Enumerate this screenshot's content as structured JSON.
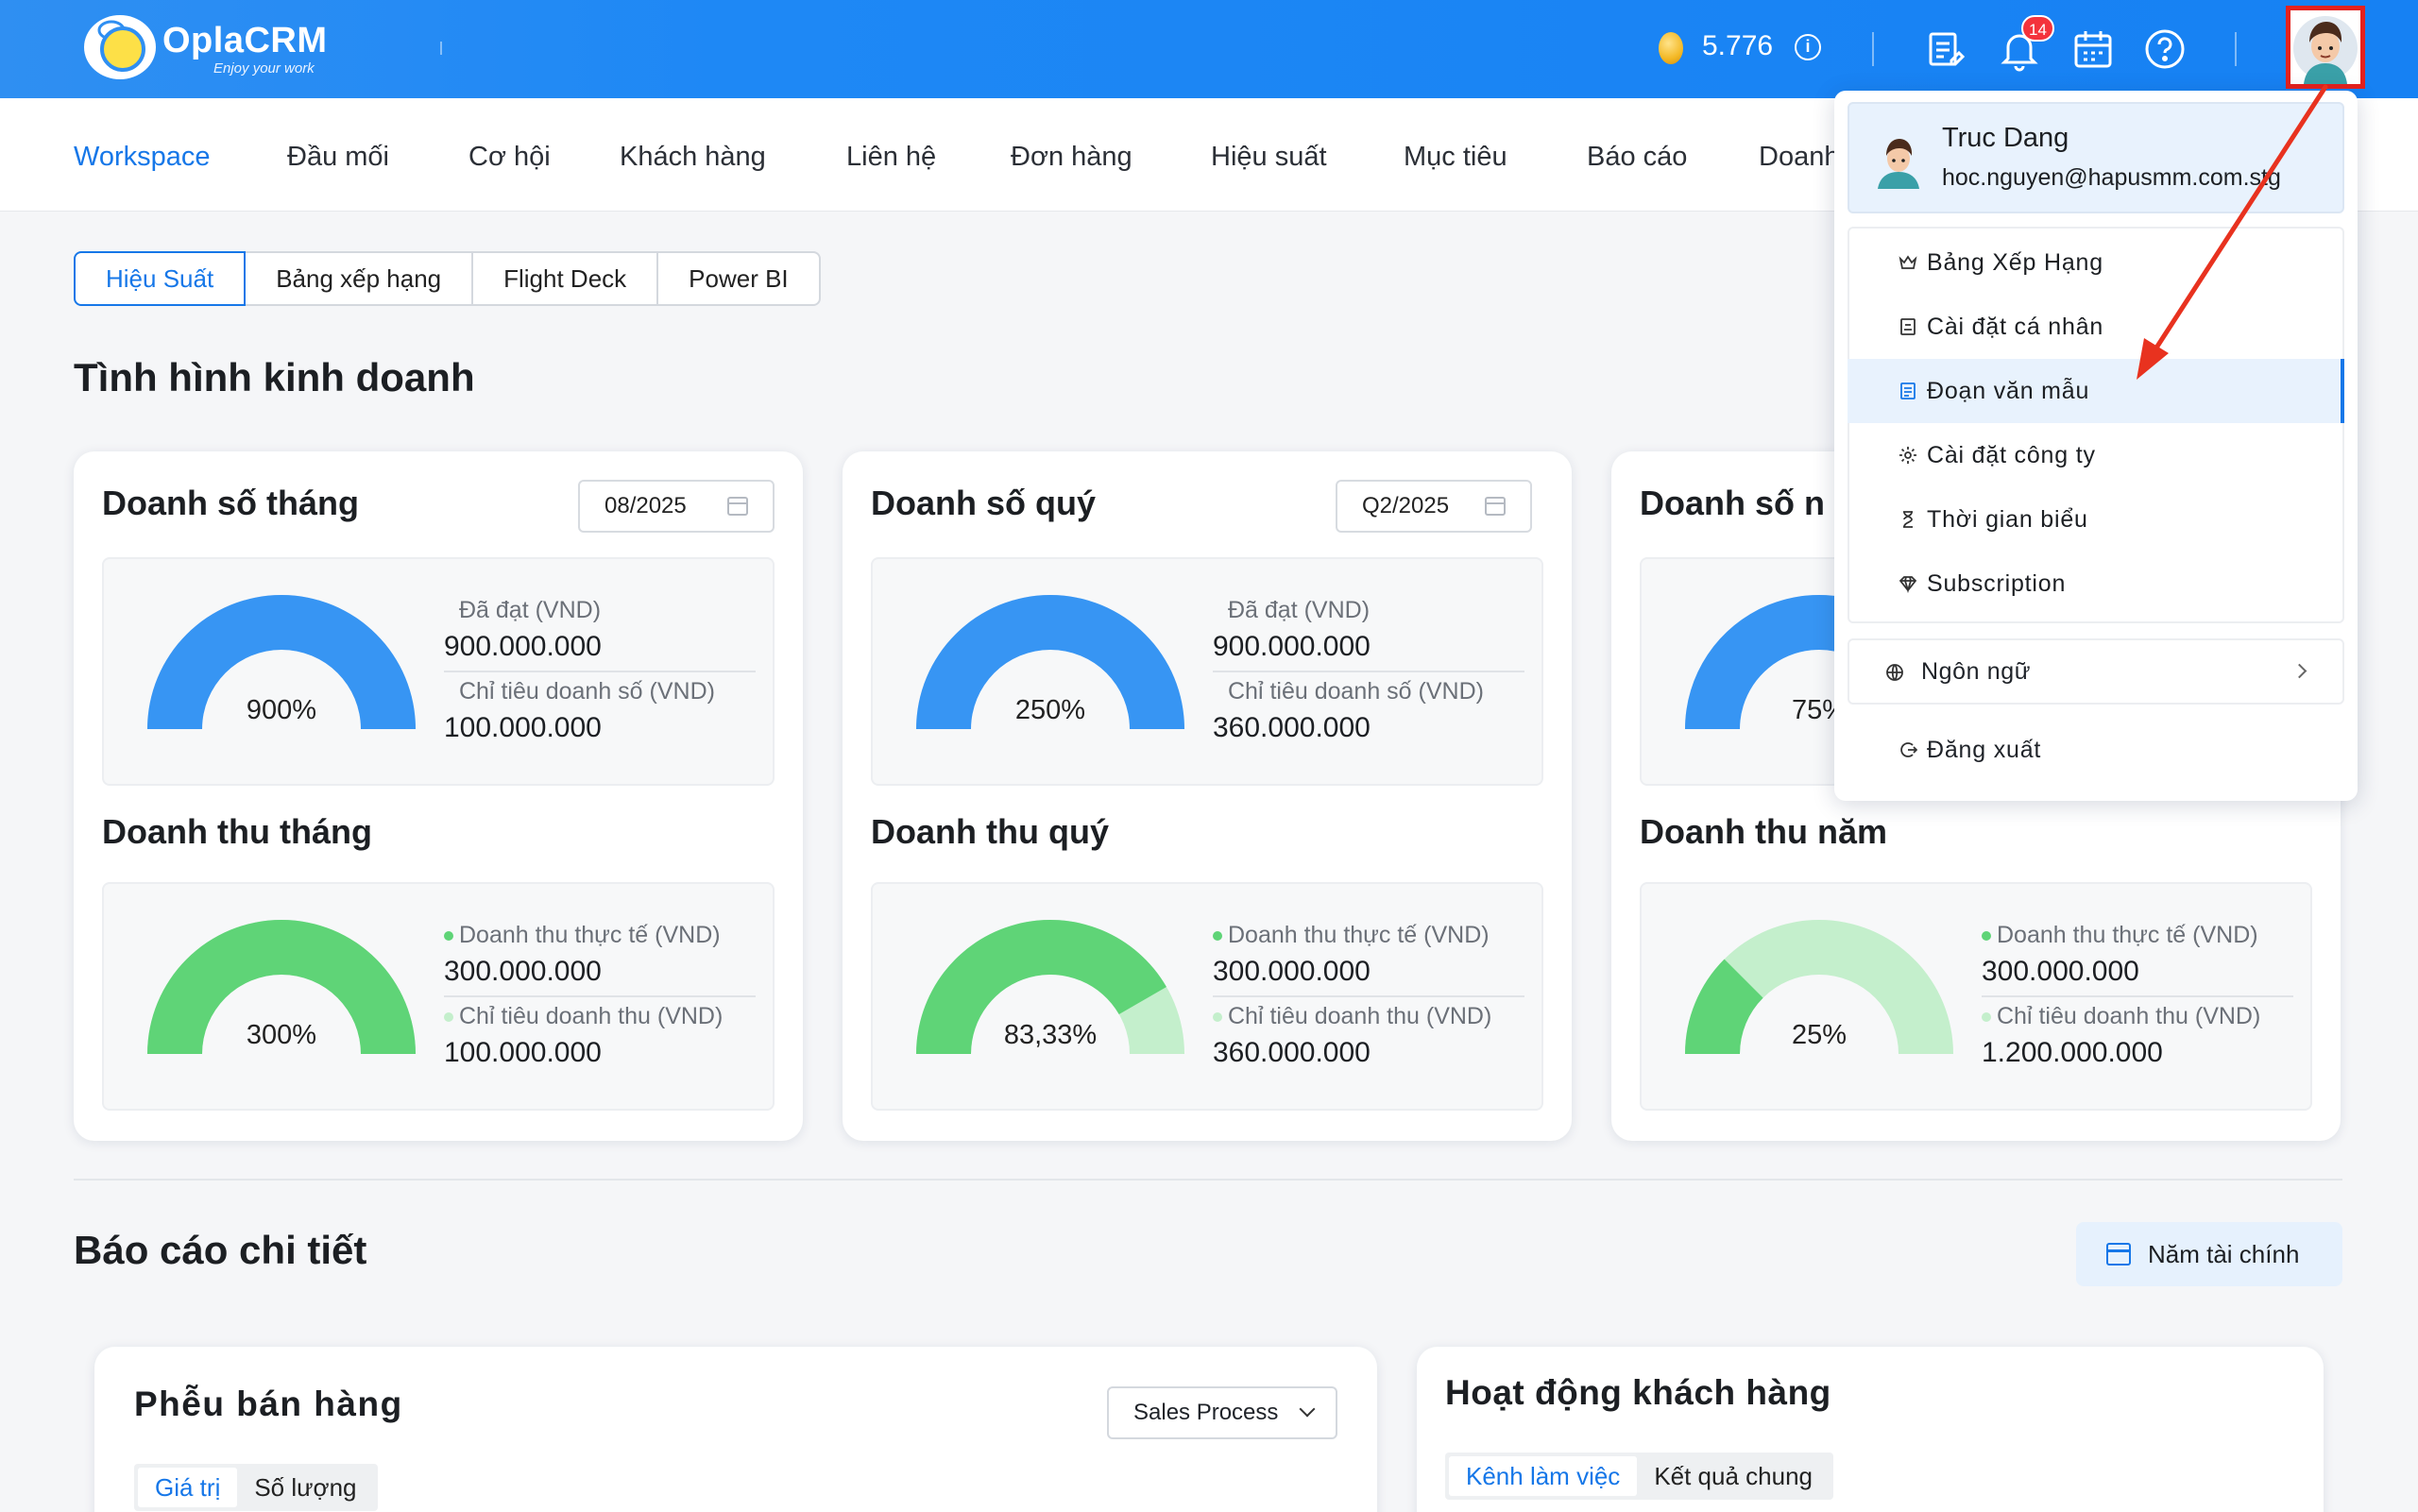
{
  "header": {
    "brand": "OplaCRM",
    "tagline": "Enjoy your work",
    "coins": "5.776",
    "notification_count": "14",
    "colors": {
      "primary": "#1681f3",
      "badge": "#f4333c"
    },
    "icons": [
      "coin-icon",
      "info-icon",
      "report-icon",
      "bell-icon",
      "calendar-icon",
      "help-icon",
      "avatar"
    ]
  },
  "nav": {
    "items": [
      "Workspace",
      "Đầu mối",
      "Cơ hội",
      "Khách hàng",
      "Liên hệ",
      "Đơn hàng",
      "Hiệu suất",
      "Mục tiêu",
      "Báo cáo",
      "Doanh"
    ],
    "active": "Workspace"
  },
  "tabs": [
    "Hiệu Suất",
    "Bảng xếp hạng",
    "Flight Deck",
    "Power BI"
  ],
  "business": {
    "title": "Tình hình kinh doanh",
    "cards": [
      {
        "sales_title": "Doanh số tháng",
        "period": "08/2025",
        "sales_pct": "900%",
        "sales_ratio": 1.0,
        "achieved_label": "Đã đạt (VND)",
        "achieved_value": "900.000.000",
        "target_label": "Chỉ tiêu doanh số (VND)",
        "target_value": "100.000.000",
        "revenue_title": "Doanh thu tháng",
        "revenue_pct": "300%",
        "revenue_ratio": 1.0,
        "actual_label": "Doanh thu thực tế (VND)",
        "actual_value": "300.000.000",
        "rev_target_label": "Chỉ tiêu doanh thu (VND)",
        "rev_target_value": "100.000.000"
      },
      {
        "sales_title": "Doanh số quý",
        "period": "Q2/2025",
        "sales_pct": "250%",
        "sales_ratio": 1.0,
        "achieved_label": "Đã đạt (VND)",
        "achieved_value": "900.000.000",
        "target_label": "Chỉ tiêu doanh số (VND)",
        "target_value": "360.000.000",
        "revenue_title": "Doanh thu quý",
        "revenue_pct": "83,33%",
        "revenue_ratio": 0.8333,
        "actual_label": "Doanh thu thực tế (VND)",
        "actual_value": "300.000.000",
        "rev_target_label": "Chỉ tiêu doanh thu (VND)",
        "rev_target_value": "360.000.000"
      },
      {
        "sales_title": "Doanh số n",
        "sales_pct": "75%",
        "sales_ratio": 0.75,
        "revenue_title": "Doanh thu năm",
        "revenue_pct": "25%",
        "revenue_ratio": 0.25,
        "actual_label": "Doanh thu thực tế (VND)",
        "actual_value": "300.000.000",
        "rev_target_label": "Chỉ tiêu doanh thu (VND)",
        "rev_target_value": "1.200.000.000"
      }
    ],
    "colors": {
      "sales": "#3795f3",
      "revenue": "#5fd477",
      "revenue_light": "#c4efcc",
      "sales_light": "#cfe3fb"
    }
  },
  "detail": {
    "title": "Báo cáo chi tiết",
    "fiscal_button": "Năm tài chính",
    "funnel": {
      "title": "Phễu bán hàng",
      "select": "Sales Process",
      "segments": [
        "Giá trị",
        "Số lượng"
      ]
    },
    "activity": {
      "title": "Hoạt động khách hàng",
      "segments": [
        "Kênh làm việc",
        "Kết quả chung"
      ]
    }
  },
  "menu": {
    "user_name": "Truc Dang",
    "user_email": "hoc.nguyen@hapusmm.com.stg",
    "items": [
      {
        "label": "Bảng Xếp Hạng",
        "icon": "crown-icon"
      },
      {
        "label": "Cài đặt cá nhân",
        "icon": "id-card-icon"
      },
      {
        "label": "Đoạn văn mẫu",
        "icon": "template-icon"
      },
      {
        "label": "Cài đặt công ty",
        "icon": "gear-icon"
      },
      {
        "label": "Thời gian biểu",
        "icon": "hourglass-icon"
      },
      {
        "label": "Subscription",
        "icon": "diamond-icon"
      }
    ],
    "language": "Ngôn ngữ",
    "logout": "Đăng xuất"
  }
}
